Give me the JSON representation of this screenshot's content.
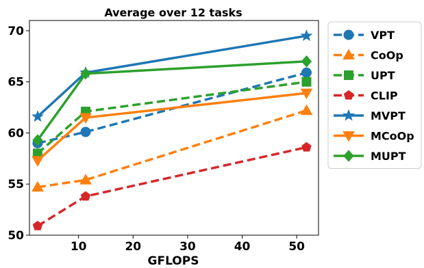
{
  "chart_data": {
    "type": "line",
    "title": "Average over 12 tasks",
    "xlabel": "GFLOPS",
    "ylabel": "",
    "xlim": [
      1,
      54
    ],
    "ylim": [
      50,
      71
    ],
    "xticks": [
      10,
      20,
      30,
      40,
      50
    ],
    "yticks": [
      50,
      55,
      60,
      65,
      70
    ],
    "x": [
      2.5,
      11.3,
      51.8
    ],
    "grid": false,
    "legend_position": "outside-right",
    "series": [
      {
        "name": "VPT",
        "values": [
          59.0,
          60.1,
          65.9
        ],
        "color": "#1f77b4",
        "linestyle": "dashed",
        "marker": "circle"
      },
      {
        "name": "CoOp",
        "values": [
          54.7,
          55.4,
          62.2
        ],
        "color": "#ff7f0e",
        "linestyle": "dashed",
        "marker": "triangle-up"
      },
      {
        "name": "UPT",
        "values": [
          58.0,
          62.1,
          65.0
        ],
        "color": "#2ca02c",
        "linestyle": "dashed",
        "marker": "square"
      },
      {
        "name": "CLIP",
        "values": [
          50.9,
          53.8,
          58.6
        ],
        "color": "#d62728",
        "linestyle": "dashed",
        "marker": "pentagon"
      },
      {
        "name": "MVPT",
        "values": [
          61.6,
          65.9,
          69.5
        ],
        "color": "#1f77b4",
        "linestyle": "solid",
        "marker": "star"
      },
      {
        "name": "MCoOp",
        "values": [
          57.3,
          61.5,
          63.9
        ],
        "color": "#ff7f0e",
        "linestyle": "solid",
        "marker": "triangle-down"
      },
      {
        "name": "MUPT",
        "values": [
          59.3,
          65.8,
          67.0
        ],
        "color": "#2ca02c",
        "linestyle": "solid",
        "marker": "diamond"
      }
    ]
  }
}
